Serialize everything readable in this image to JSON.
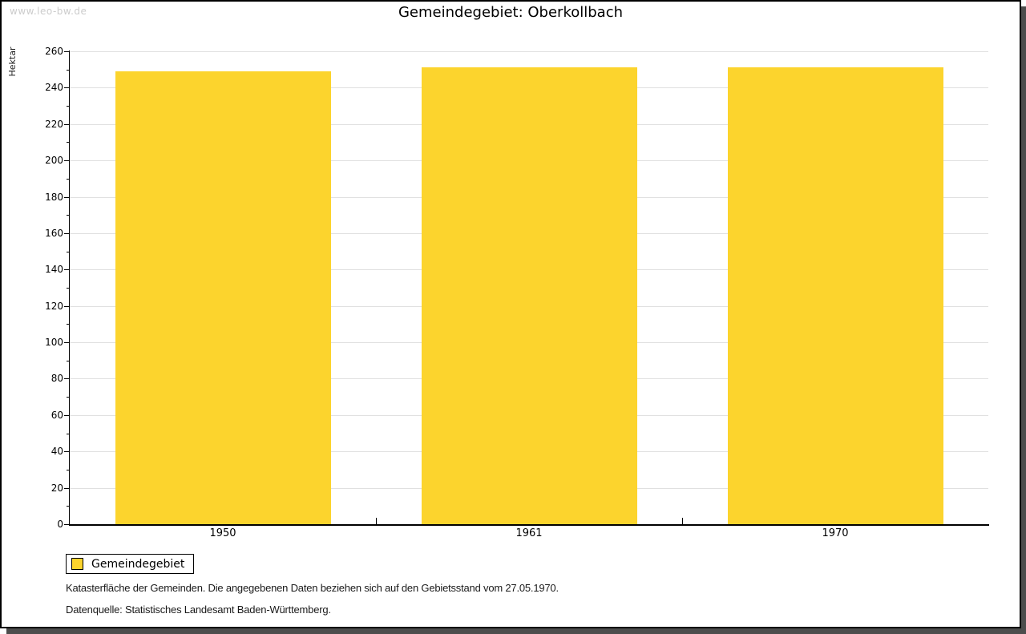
{
  "watermark": "www.leo-bw.de",
  "title": "Gemeindegebiet: Oberkollbach",
  "chart_data": {
    "type": "bar",
    "title": "Gemeindegebiet: Oberkollbach",
    "categories": [
      "1950",
      "1961",
      "1970"
    ],
    "series": [
      {
        "name": "Gemeindegebiet",
        "values": [
          249,
          251,
          251
        ]
      }
    ],
    "xlabel": "",
    "ylabel": "Hektar",
    "ylim": [
      0,
      260
    ],
    "ytick_major": 20,
    "ytick_minor": 10,
    "ytick_labels": [
      "0",
      "20",
      "40",
      "60",
      "80",
      "100",
      "120",
      "140",
      "160",
      "180",
      "200",
      "220",
      "240",
      "260"
    ],
    "grid": "horizontal-major",
    "legend_position": "bottom-left",
    "bar_color": "#FCD42D"
  },
  "legend": {
    "items": [
      {
        "label": "Gemeindegebiet",
        "color": "#FCD42D"
      }
    ]
  },
  "footer": {
    "line1": "Katasterfläche der Gemeinden. Die angegebenen Daten beziehen sich auf den Gebietsstand vom 27.05.1970.",
    "line2": "Datenquelle: Statistisches Landesamt Baden-Württemberg."
  },
  "colors": {
    "bar": "#FCD42D",
    "grid": "#E0E0E0",
    "axis": "#000000",
    "text": "#000000",
    "watermark": "#CCCCCC",
    "shadow": "#4D4D4D",
    "background": "#FFFFFF"
  }
}
